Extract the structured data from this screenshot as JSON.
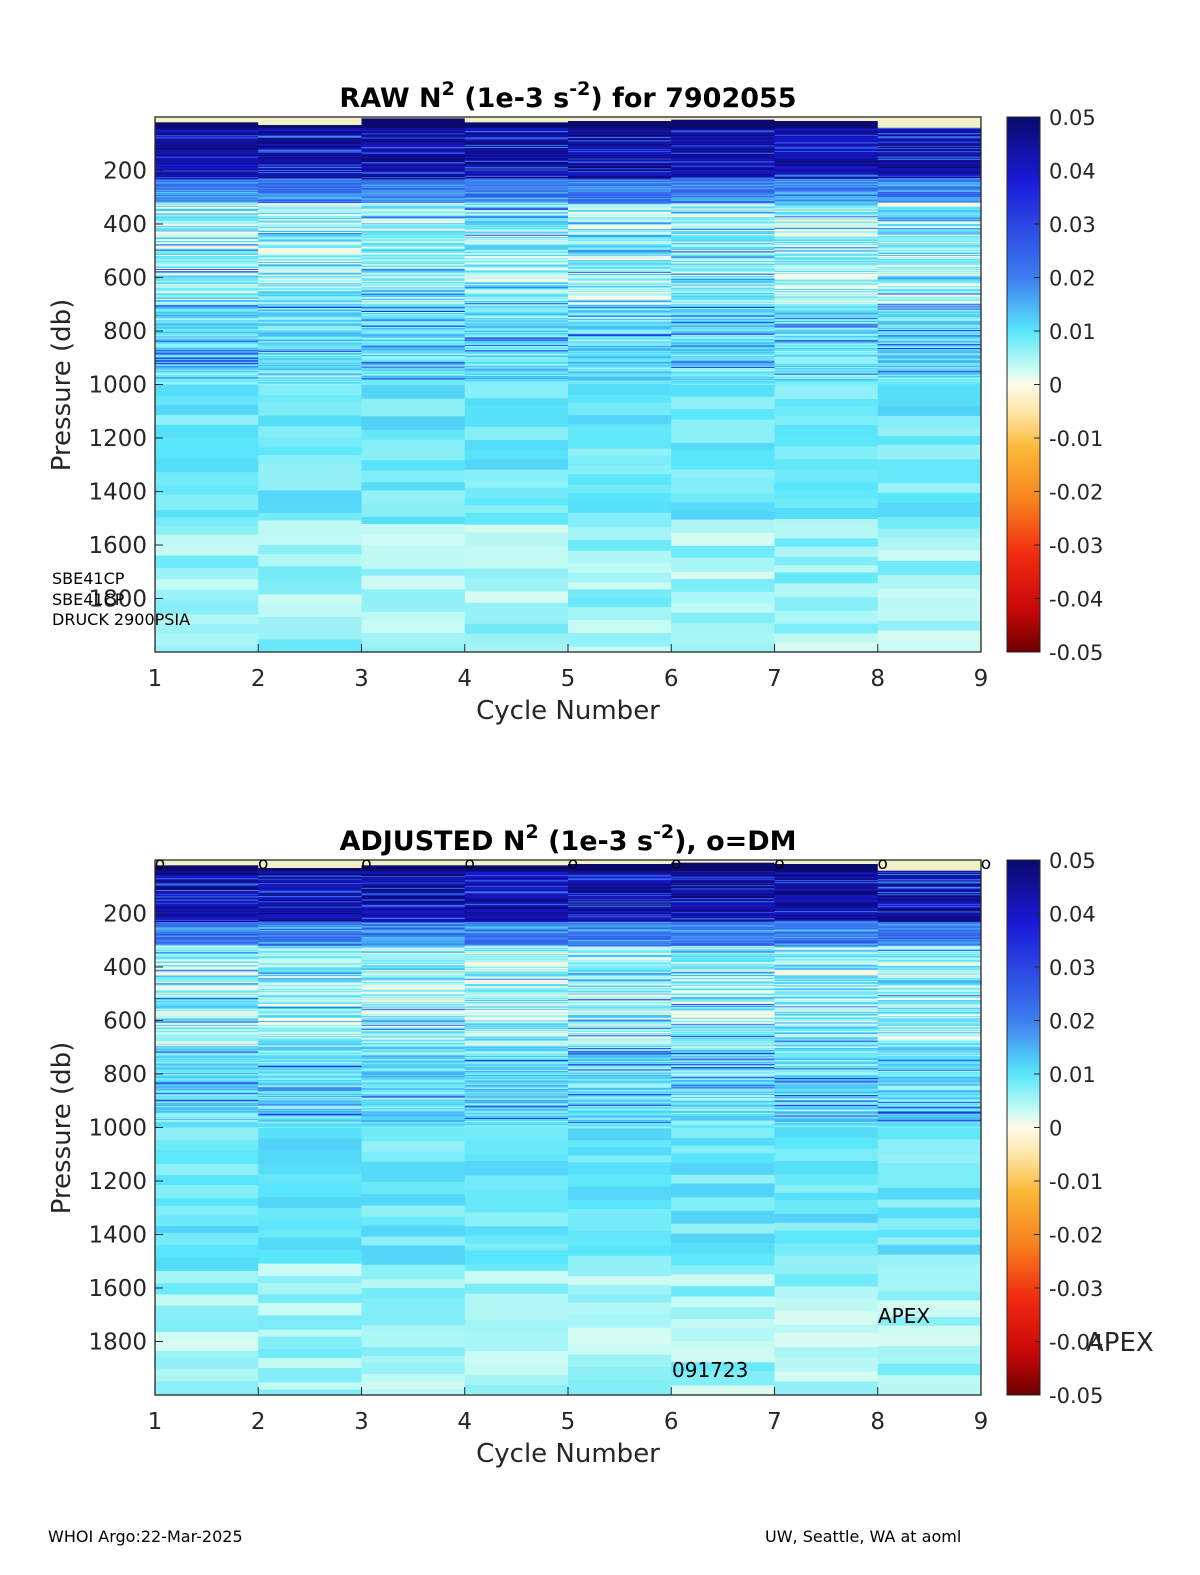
{
  "footer": {
    "left": "WHOI Argo:22-Mar-2025",
    "right": "UW, Seattle, WA at aoml"
  },
  "colormap": "jet-like diverging (dark red → red → orange → yellow → cream → cyan → blue → dark blue)",
  "chart_data": [
    {
      "type": "heatmap",
      "title": {
        "pre": "RAW N",
        "sup1": "2",
        "mid": " (1e-3 s",
        "sup2": "-2",
        "post": ") for 7902055"
      },
      "xlabel": "Cycle Number",
      "ylabel": "Pressure (db)",
      "x": [
        1,
        2,
        3,
        4,
        5,
        6,
        7,
        8
      ],
      "xlim": [
        1,
        9
      ],
      "xticks": [
        "1",
        "2",
        "3",
        "4",
        "5",
        "6",
        "7",
        "8",
        "9"
      ],
      "ylim": [
        0,
        2000
      ],
      "y_reversed": true,
      "yticks": [
        "200",
        "400",
        "600",
        "800",
        "1000",
        "1200",
        "1400",
        "1600",
        "1800"
      ],
      "colorbar": {
        "clim": [
          -0.05,
          0.05
        ],
        "ticks": [
          "0.05",
          "0.04",
          "0.03",
          "0.02",
          "0.01",
          "0",
          "-0.01",
          "-0.02",
          "-0.03",
          "-0.04",
          "-0.05"
        ]
      },
      "profile_tops_db": [
        20,
        30,
        5,
        20,
        15,
        10,
        15,
        40
      ],
      "layers": [
        {
          "from": 0,
          "to": 250,
          "value": 0.042
        },
        {
          "from": 250,
          "to": 550,
          "value": 0.008
        },
        {
          "from": 550,
          "to": 1000,
          "value": 0.01
        },
        {
          "from": 1000,
          "to": 1500,
          "value": 0.009
        },
        {
          "from": 1500,
          "to": 2000,
          "value": 0.006
        }
      ],
      "annotations": [
        "SBE41CP",
        "SBE41CP",
        "DRUCK 2900PSIA"
      ]
    },
    {
      "type": "heatmap",
      "title": {
        "pre": "ADJUSTED N",
        "sup1": "2",
        "mid": " (1e-3 s",
        "sup2": "-2",
        "post": "), o=DM"
      },
      "xlabel": "Cycle Number",
      "ylabel": "Pressure (db)",
      "x": [
        1,
        2,
        3,
        4,
        5,
        6,
        7,
        8
      ],
      "xlim": [
        1,
        9
      ],
      "xticks": [
        "1",
        "2",
        "3",
        "4",
        "5",
        "6",
        "7",
        "8",
        "9"
      ],
      "ylim": [
        0,
        2000
      ],
      "y_reversed": true,
      "yticks": [
        "200",
        "400",
        "600",
        "800",
        "1000",
        "1200",
        "1400",
        "1600",
        "1800"
      ],
      "colorbar": {
        "clim": [
          -0.05,
          0.05
        ],
        "ticks": [
          "0.05",
          "0.04",
          "0.03",
          "0.02",
          "0.01",
          "0",
          "-0.01",
          "-0.02",
          "-0.03",
          "-0.04",
          "-0.05"
        ]
      },
      "profile_tops_db": [
        20,
        30,
        20,
        20,
        15,
        10,
        15,
        40
      ],
      "dm_markers": {
        "symbol": "o",
        "x": [
          1,
          2,
          3,
          4,
          5,
          6,
          7,
          8,
          9
        ]
      },
      "annotations": [
        "APEX",
        "091723",
        "APEX"
      ]
    }
  ]
}
